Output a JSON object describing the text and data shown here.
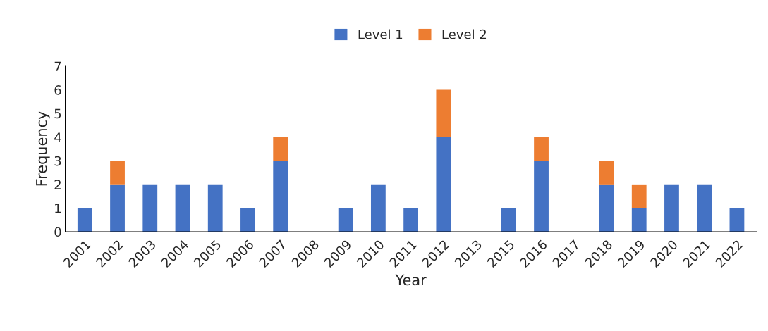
{
  "chart_data": {
    "type": "bar",
    "stacked": true,
    "xlabel": "Year",
    "ylabel": "Frequency",
    "categories": [
      "2001",
      "2002",
      "2003",
      "2004",
      "2005",
      "2006",
      "2007",
      "2008",
      "2009",
      "2010",
      "2011",
      "2012",
      "2013",
      "2015",
      "2016",
      "2017",
      "2018",
      "2019",
      "2020",
      "2021",
      "2022"
    ],
    "series": [
      {
        "name": "Level 1",
        "color": "#4472c4",
        "values": [
          1,
          2,
          2,
          2,
          2,
          1,
          3,
          0,
          1,
          2,
          1,
          4,
          0,
          1,
          3,
          0,
          2,
          1,
          2,
          2,
          1
        ]
      },
      {
        "name": "Level 2",
        "color": "#ed7d31",
        "values": [
          0,
          1,
          0,
          0,
          0,
          0,
          1,
          0,
          0,
          0,
          0,
          2,
          0,
          0,
          1,
          0,
          1,
          1,
          0,
          0,
          0
        ]
      }
    ],
    "ylim": [
      0,
      7
    ],
    "yticks": [
      0,
      1,
      2,
      3,
      4,
      5,
      6,
      7
    ],
    "grid": false,
    "legend": "top"
  }
}
